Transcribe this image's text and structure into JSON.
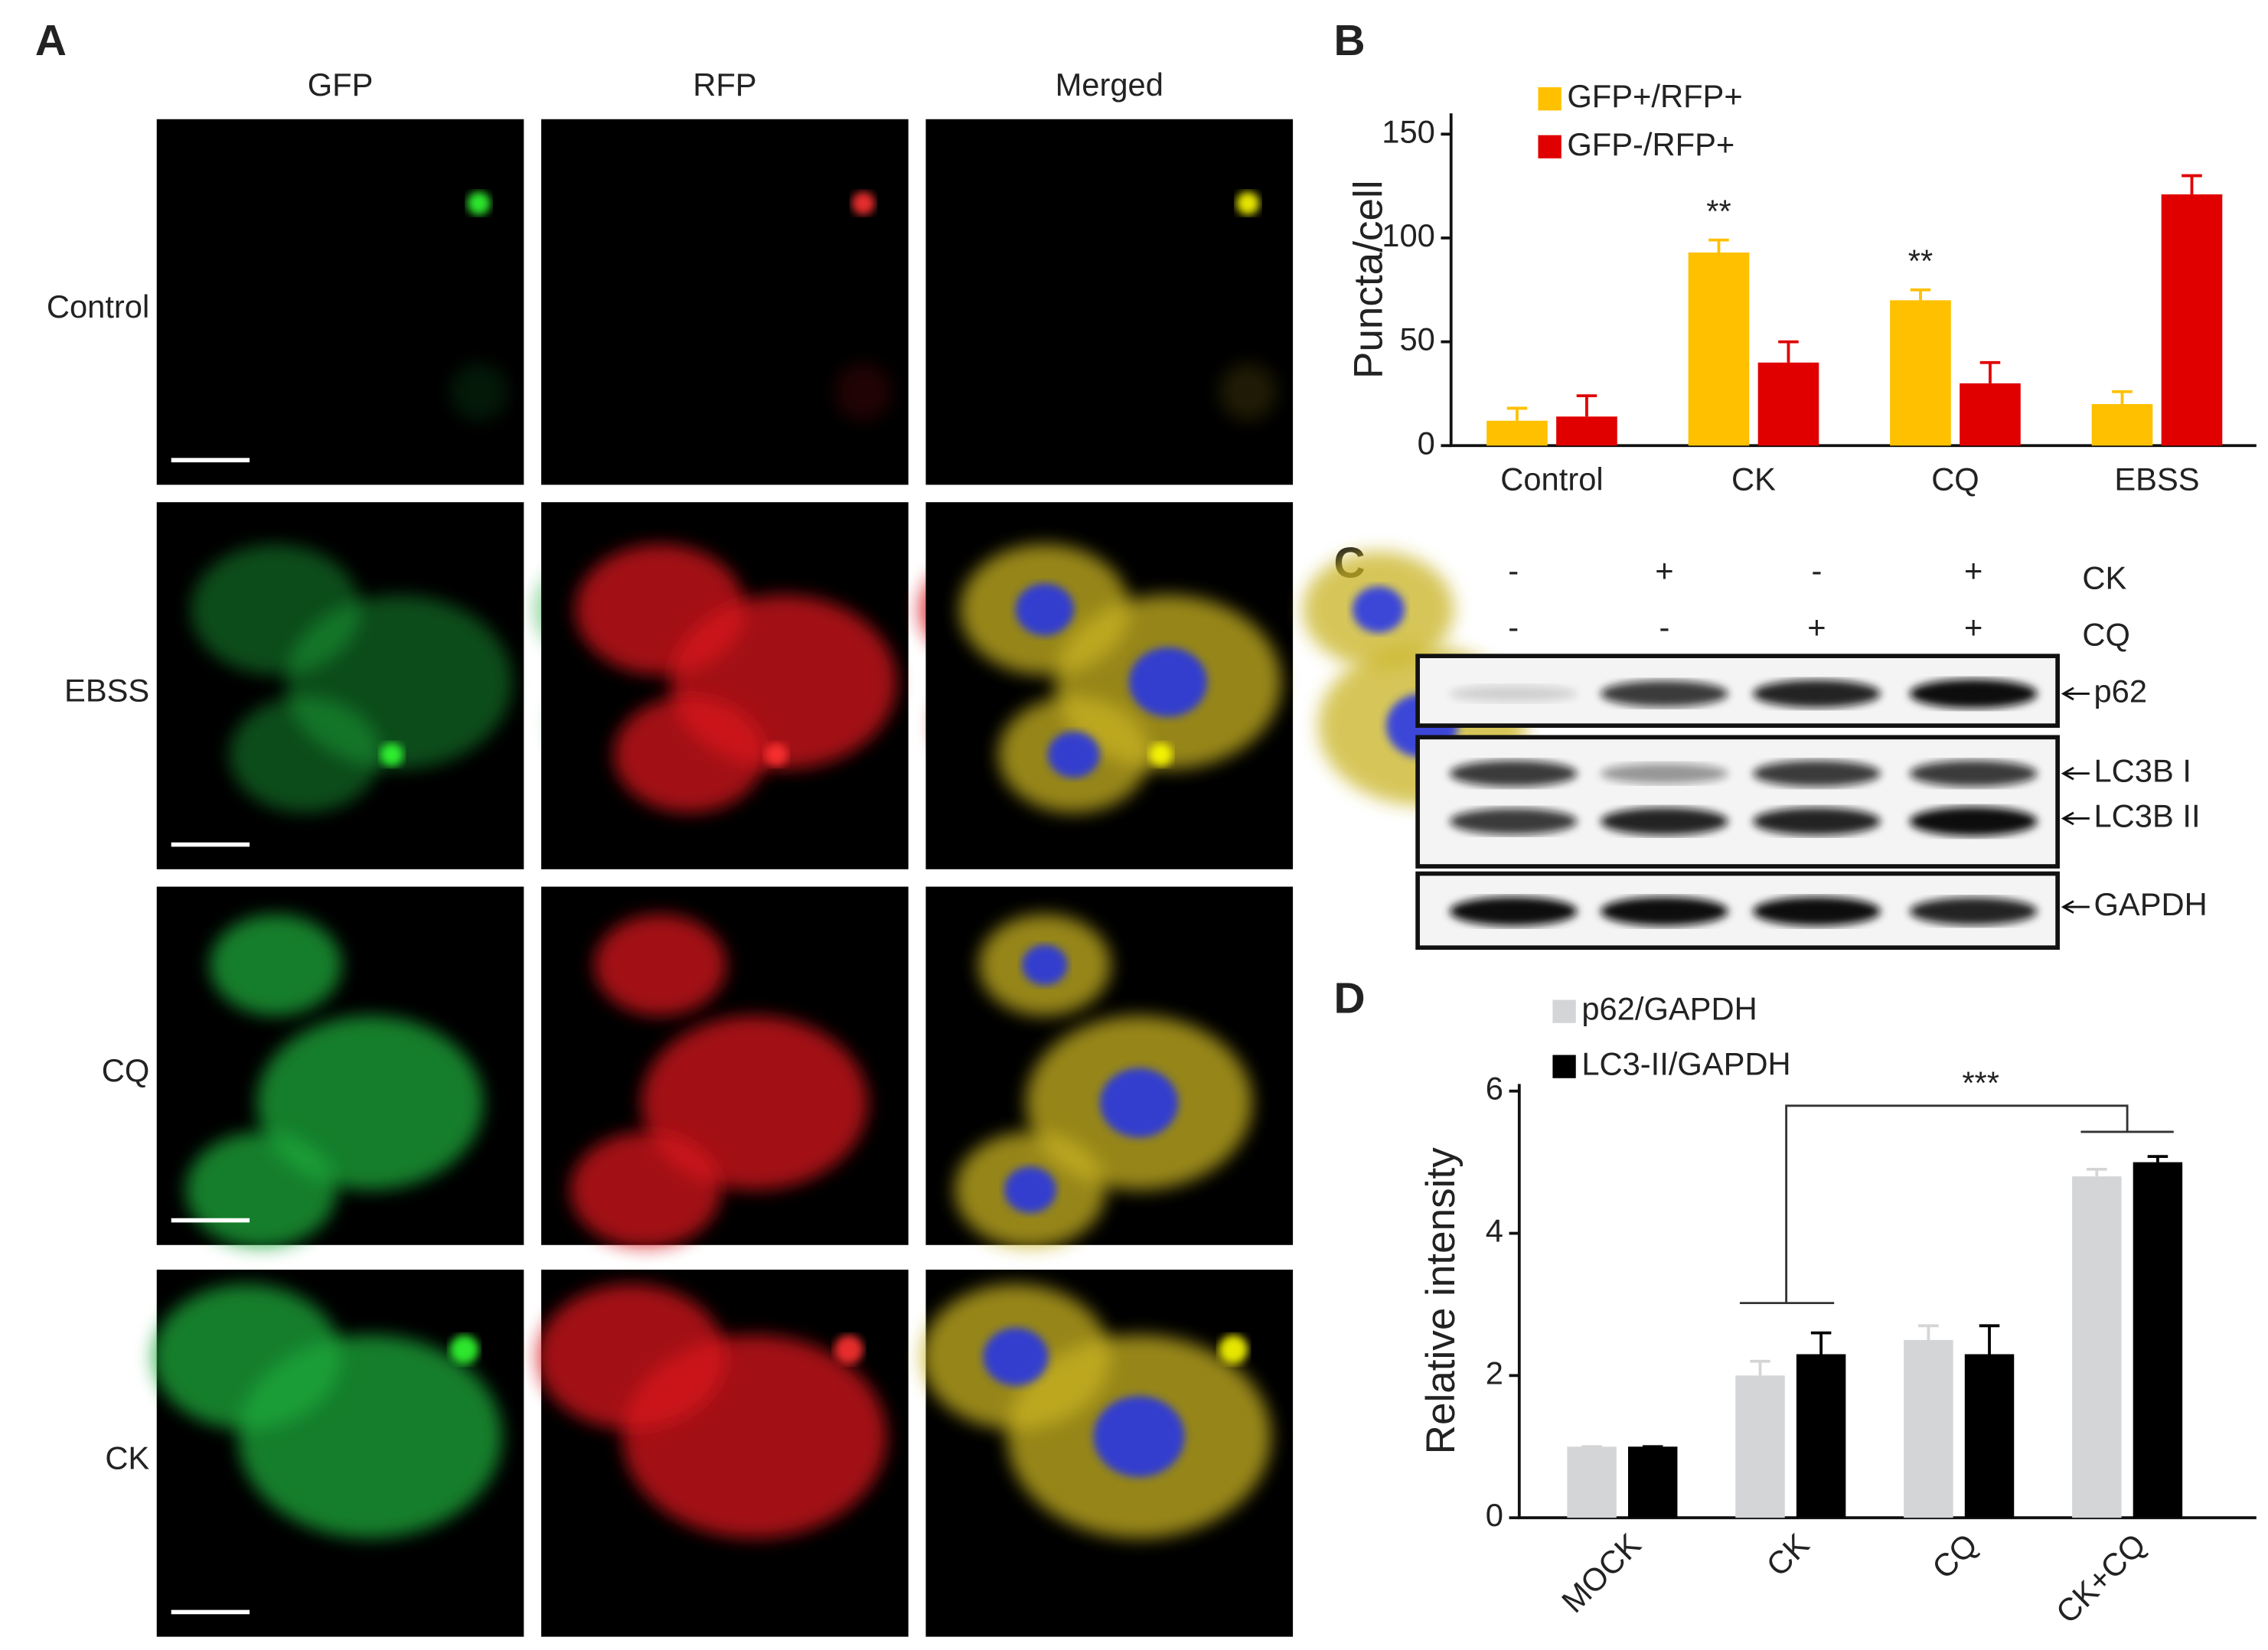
{
  "panel_labels": [
    "A",
    "B",
    "C",
    "D"
  ],
  "panel_a": {
    "columns": [
      "GFP",
      "RFP",
      "Merged"
    ],
    "colors": [
      "#19b35a",
      "#e8141c",
      "#ffe600"
    ],
    "rows": [
      "Control",
      "EBSS",
      "CQ",
      "CK"
    ]
  },
  "chart_data": [
    {
      "type": "bar",
      "ylabel": "Puncta/cell",
      "categories": [
        "Control",
        "CK",
        "CQ",
        "EBSS"
      ],
      "series": [
        {
          "name": "GFP+/RFP+",
          "color": "#ffc000",
          "values": [
            12,
            93,
            70,
            20
          ],
          "errors": [
            6,
            6,
            5,
            6
          ]
        },
        {
          "name": "GFP-/RFP+",
          "color": "#e00000",
          "values": [
            14,
            40,
            30,
            121
          ],
          "errors": [
            10,
            10,
            10,
            9
          ]
        }
      ],
      "ylim": [
        0,
        160
      ],
      "yticks": [
        0,
        50,
        100,
        150
      ],
      "annotations": [
        null,
        "**",
        "**",
        null
      ]
    },
    {
      "type": "bar",
      "ylabel": "Relative intensity",
      "categories": [
        "MOCK",
        "CK",
        "CQ",
        "CK+CQ"
      ],
      "series": [
        {
          "name": "p62/GAPDH",
          "color": "#d3d5d7",
          "values": [
            1,
            2,
            2.5,
            4.8
          ],
          "errors": [
            0,
            0.2,
            0.2,
            0.1
          ]
        },
        {
          "name": "LC3-II/GAPDH",
          "color": "#000000",
          "values": [
            1,
            2.3,
            2.3,
            5
          ],
          "errors": [
            0,
            0.3,
            0.4,
            0.08
          ]
        }
      ],
      "ylim": [
        0,
        6.1
      ],
      "yticks": [
        0,
        2,
        4,
        6
      ],
      "annotation": "***"
    }
  ],
  "panel_c": {
    "treatments": [
      {
        "label": "CK",
        "signs": [
          "-",
          "+",
          "-",
          "+"
        ]
      },
      {
        "label": "CQ",
        "signs": [
          "-",
          "-",
          "+",
          "+"
        ]
      }
    ],
    "bands": [
      "p62",
      "LC3B I",
      "LC3B II",
      "GAPDH"
    ]
  }
}
